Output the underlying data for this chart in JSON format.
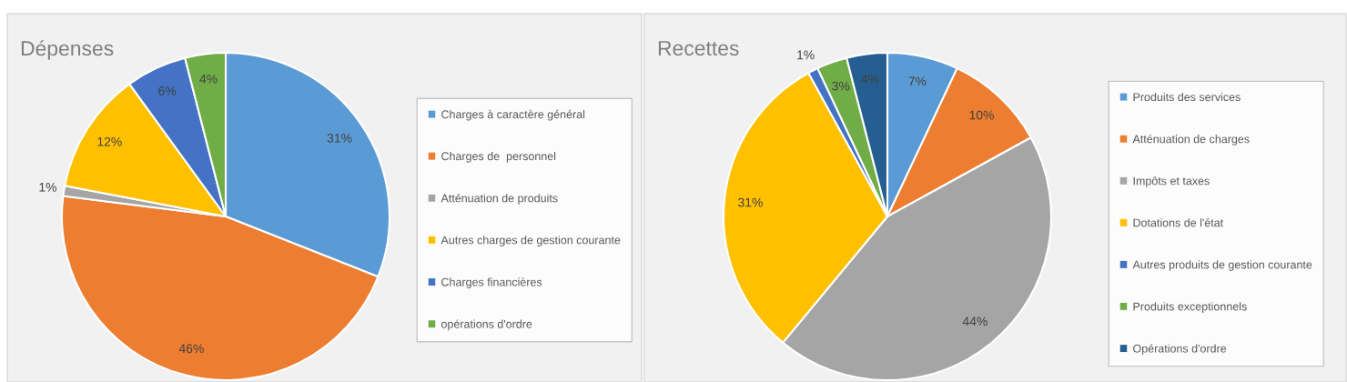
{
  "chart_data": [
    {
      "type": "pie",
      "title": "Dépenses",
      "categories": [
        "Charges à caractère général",
        "Charges de  personnel",
        "Atténuation de produits",
        "Autres charges de gestion courante",
        "Charges financières",
        "opérations d'ordre"
      ],
      "values": [
        31,
        46,
        1,
        12,
        6,
        4
      ],
      "value_labels": [
        "31%",
        "46%",
        "1%",
        "12%",
        "6%",
        "4%"
      ],
      "colors": [
        "#5b9bd5",
        "#ed7d31",
        "#a5a5a5",
        "#ffc000",
        "#4472c4",
        "#70ad47"
      ],
      "legend": "right"
    },
    {
      "type": "pie",
      "title": "Recettes",
      "categories": [
        "Produits des services",
        "Atténuation de charges",
        "Impôts et taxes",
        "Dotations de l'état",
        "Autres produits de gestion courante",
        "Produits exceptionnels",
        "Opérations d'ordre"
      ],
      "values": [
        7,
        10,
        44,
        31,
        1,
        3,
        4
      ],
      "value_labels": [
        "7%",
        "10%",
        "44%",
        "31%",
        "1%",
        "3%",
        "4%"
      ],
      "colors": [
        "#5b9bd5",
        "#ed7d31",
        "#a5a5a5",
        "#ffc000",
        "#4472c4",
        "#70ad47",
        "#255e91"
      ],
      "legend": "right"
    }
  ]
}
